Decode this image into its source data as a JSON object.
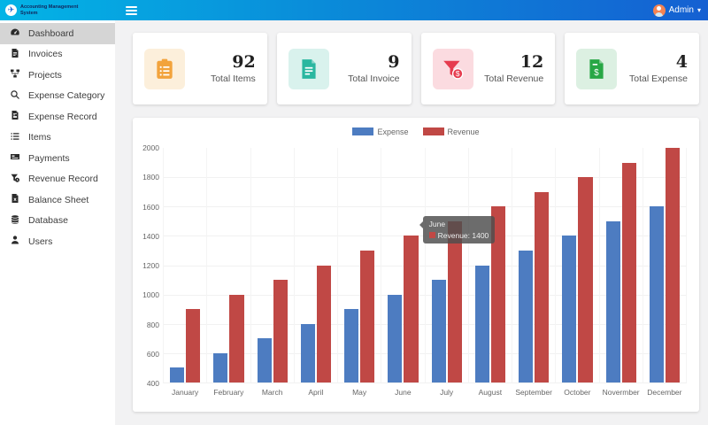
{
  "header": {
    "app_title": "Accounting Management System",
    "user_name": "Admin"
  },
  "sidebar": {
    "items": [
      {
        "label": "Dashboard",
        "icon": "tachometer",
        "active": true
      },
      {
        "label": "Invoices",
        "icon": "file-invoice",
        "active": false
      },
      {
        "label": "Projects",
        "icon": "project-diagram",
        "active": false
      },
      {
        "label": "Expense Category",
        "icon": "search",
        "active": false
      },
      {
        "label": "Expense Record",
        "icon": "file-record",
        "active": false
      },
      {
        "label": "Items",
        "icon": "list",
        "active": false
      },
      {
        "label": "Payments",
        "icon": "money-check",
        "active": false
      },
      {
        "label": "Revenue Record",
        "icon": "filter-clock",
        "active": false
      },
      {
        "label": "Balance Sheet",
        "icon": "file-x",
        "active": false
      },
      {
        "label": "Database",
        "icon": "database",
        "active": false
      },
      {
        "label": "Users",
        "icon": "user",
        "active": false
      }
    ]
  },
  "stats": [
    {
      "value": "92",
      "label": "Total Items",
      "icon": "clipboard-list",
      "color": "#f2a33c",
      "bg": "#fcefdb"
    },
    {
      "value": "9",
      "label": "Total Invoice",
      "icon": "file-invoice",
      "color": "#2ab7a0",
      "bg": "#d9f2ed"
    },
    {
      "value": "12",
      "label": "Total Revenue",
      "icon": "funnel-dollar",
      "color": "#e63c4f",
      "bg": "#fbdbe0"
    },
    {
      "value": "4",
      "label": "Total Expense",
      "icon": "file-dollar",
      "color": "#28a745",
      "bg": "#dcf0e2"
    }
  ],
  "chart_data": {
    "type": "bar",
    "categories": [
      "January",
      "February",
      "March",
      "April",
      "May",
      "June",
      "July",
      "August",
      "September",
      "October",
      "Novermber",
      "December"
    ],
    "series": [
      {
        "name": "Expense",
        "color": "#4d7cc1",
        "values": [
          500,
          600,
          700,
          800,
          900,
          1000,
          1100,
          1200,
          1300,
          1400,
          1500,
          1600
        ]
      },
      {
        "name": "Revenue",
        "color": "#c04845",
        "values": [
          900,
          1000,
          1100,
          1200,
          1300,
          1400,
          1500,
          1600,
          1700,
          1800,
          1900,
          2000
        ]
      }
    ],
    "ylim": [
      400,
      2000
    ],
    "ytick_step": 200,
    "yticks": [
      "2000",
      "1800",
      "1600",
      "1400",
      "1200",
      "1000",
      "800",
      "600",
      "400"
    ],
    "grid": true,
    "legend_position": "top",
    "tooltip": {
      "title": "June",
      "series": "Revenue",
      "value": 1400,
      "text": "Revenue: 1400",
      "swatch_color": "#c04845"
    }
  }
}
